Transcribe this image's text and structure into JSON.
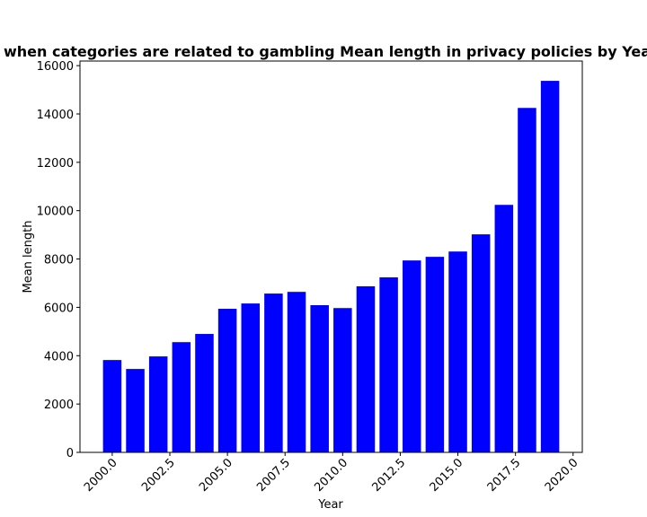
{
  "chart_data": {
    "type": "bar",
    "title": "when categories are related to gambling Mean length in privacy policies by Year",
    "xlabel": "Year",
    "ylabel": "Mean length",
    "x": [
      2000,
      2001,
      2002,
      2003,
      2004,
      2005,
      2006,
      2007,
      2008,
      2009,
      2010,
      2011,
      2012,
      2013,
      2014,
      2015,
      2016,
      2017,
      2018,
      2019
    ],
    "values": [
      3820,
      3450,
      3970,
      4560,
      4900,
      5940,
      6160,
      6570,
      6640,
      6090,
      5970,
      6870,
      7240,
      7940,
      8090,
      8310,
      9020,
      10240,
      14250,
      15370
    ],
    "color": "#0000ff",
    "bar_width": 0.8,
    "xlim": [
      1998.6,
      2020.4
    ],
    "ylim": [
      0,
      16190
    ],
    "xticks": [
      {
        "value": 2000,
        "label": "2000.0"
      },
      {
        "value": 2002.5,
        "label": "2002.5"
      },
      {
        "value": 2005,
        "label": "2005.0"
      },
      {
        "value": 2007.5,
        "label": "2007.5"
      },
      {
        "value": 2010,
        "label": "2010.0"
      },
      {
        "value": 2012.5,
        "label": "2012.5"
      },
      {
        "value": 2015,
        "label": "2015.0"
      },
      {
        "value": 2017.5,
        "label": "2017.5"
      },
      {
        "value": 2020,
        "label": "2020.0"
      }
    ],
    "yticks": [
      0,
      2000,
      4000,
      6000,
      8000,
      10000,
      12000,
      14000,
      16000
    ],
    "grid": false
  }
}
